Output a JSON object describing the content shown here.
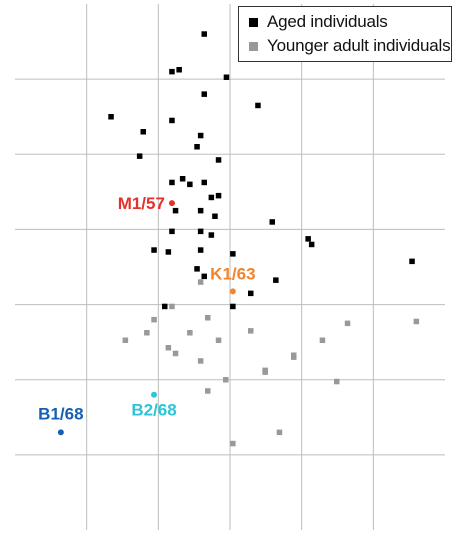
{
  "chart_data": {
    "type": "scatter",
    "title": "",
    "xlabel": "",
    "ylabel": "",
    "xlim": [
      0,
      12
    ],
    "ylim": [
      0,
      14
    ],
    "grid": true,
    "legend_position": "top-right",
    "series": [
      {
        "name": "Aged individuals",
        "color": "#000000",
        "marker": "square",
        "points": [
          [
            5.28,
            13.2
          ],
          [
            4.38,
            12.2
          ],
          [
            4.58,
            12.25
          ],
          [
            5.9,
            12.05
          ],
          [
            5.28,
            11.6
          ],
          [
            6.78,
            11.3
          ],
          [
            2.68,
            11.0
          ],
          [
            4.38,
            10.9
          ],
          [
            3.58,
            10.6
          ],
          [
            5.18,
            10.5
          ],
          [
            5.08,
            10.2
          ],
          [
            3.48,
            9.95
          ],
          [
            5.68,
            9.85
          ],
          [
            4.68,
            9.35
          ],
          [
            4.38,
            9.25
          ],
          [
            4.88,
            9.2
          ],
          [
            5.28,
            9.25
          ],
          [
            5.48,
            8.85
          ],
          [
            5.68,
            8.9
          ],
          [
            4.48,
            8.5
          ],
          [
            5.18,
            8.5
          ],
          [
            5.58,
            8.35
          ],
          [
            7.18,
            8.2
          ],
          [
            4.38,
            7.95
          ],
          [
            5.18,
            7.95
          ],
          [
            5.48,
            7.85
          ],
          [
            8.18,
            7.75
          ],
          [
            8.28,
            7.6
          ],
          [
            3.88,
            7.45
          ],
          [
            4.28,
            7.4
          ],
          [
            5.18,
            7.45
          ],
          [
            6.08,
            7.35
          ],
          [
            11.08,
            7.15
          ],
          [
            5.08,
            6.95
          ],
          [
            5.28,
            6.75
          ],
          [
            7.28,
            6.65
          ],
          [
            6.58,
            6.3
          ],
          [
            4.18,
            5.95
          ],
          [
            6.08,
            5.95
          ]
        ]
      },
      {
        "name": "Younger adult individuals",
        "color": "#999999",
        "marker": "square",
        "points": [
          [
            5.18,
            6.6
          ],
          [
            4.38,
            5.95
          ],
          [
            3.88,
            5.6
          ],
          [
            5.38,
            5.65
          ],
          [
            9.28,
            5.5
          ],
          [
            11.2,
            5.55
          ],
          [
            3.68,
            5.25
          ],
          [
            4.88,
            5.25
          ],
          [
            6.58,
            5.3
          ],
          [
            3.08,
            5.05
          ],
          [
            5.68,
            5.05
          ],
          [
            8.58,
            5.05
          ],
          [
            4.28,
            4.85
          ],
          [
            4.48,
            4.7
          ],
          [
            7.78,
            4.65
          ],
          [
            5.18,
            4.5
          ],
          [
            7.78,
            4.6
          ],
          [
            6.98,
            4.25
          ],
          [
            6.98,
            4.2
          ],
          [
            5.88,
            4.0
          ],
          [
            8.98,
            3.95
          ],
          [
            5.38,
            3.7
          ],
          [
            7.38,
            2.6
          ],
          [
            6.08,
            2.3
          ]
        ]
      }
    ],
    "annotations": [
      {
        "label": "M1/57",
        "x": 4.38,
        "y": 8.7,
        "color": "#e5312b"
      },
      {
        "label": "K1/63",
        "x": 6.08,
        "y": 6.35,
        "color": "#f0852d"
      },
      {
        "label": "B2/68",
        "x": 3.88,
        "y": 3.6,
        "color": "#2cc4d6"
      },
      {
        "label": "B1/68",
        "x": 1.28,
        "y": 2.6,
        "color": "#1560b0"
      }
    ],
    "colors": {
      "grid": "#bdbdbd",
      "aged": "#000000",
      "younger": "#999999"
    }
  }
}
